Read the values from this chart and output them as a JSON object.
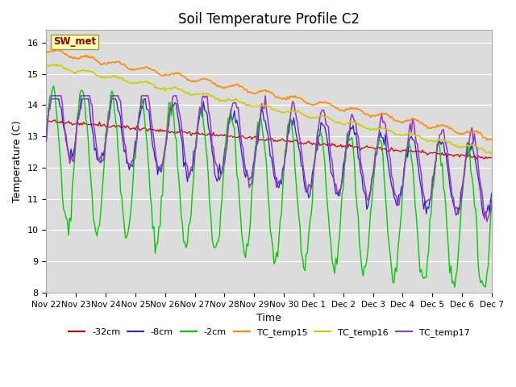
{
  "title": "Soil Temperature Profile C2",
  "xlabel": "Time",
  "ylabel": "Temperature (C)",
  "ylim": [
    8.0,
    16.4
  ],
  "yticks": [
    8.0,
    9.0,
    10.0,
    11.0,
    12.0,
    13.0,
    14.0,
    15.0,
    16.0
  ],
  "plot_bg_color": "#dcdcdc",
  "fig_bg_color": "#ffffff",
  "sw_met_label": "SW_met",
  "legend_entries": [
    "-32cm",
    "-8cm",
    "-2cm",
    "TC_temp15",
    "TC_temp16",
    "TC_temp17"
  ],
  "legend_colors": [
    "#cc0000",
    "#2222cc",
    "#00cc00",
    "#ff8800",
    "#cccc00",
    "#9933bb"
  ],
  "tick_labels": [
    "Nov 22",
    "Nov 23",
    "Nov 24",
    "Nov 25",
    "Nov 26",
    "Nov 27",
    "Nov 28",
    "Nov 29",
    "Nov 30",
    "Dec 1",
    "Dec 2",
    "Dec 3",
    "Dec 4",
    "Dec 5",
    "Dec 6",
    "Dec 7"
  ],
  "title_fontsize": 12,
  "axis_fontsize": 9,
  "tick_fontsize": 7.5
}
